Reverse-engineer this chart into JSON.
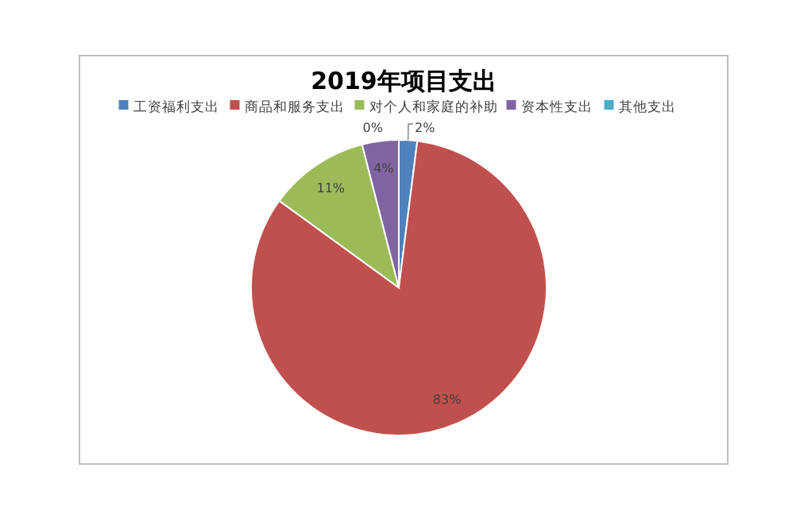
{
  "chart_data": {
    "type": "pie",
    "title": "2019年项目支出",
    "legend": "top",
    "value_labels": [
      "2%",
      "83%",
      "11%",
      "4%",
      "0%"
    ],
    "categories": [
      "工资福利支出",
      "商品和服务支出",
      "对个人和家庭的补助",
      "资本性支出",
      "其他支出"
    ],
    "values": [
      2,
      83,
      11,
      4,
      0
    ],
    "colors": [
      "#4f81bd",
      "#c0504d",
      "#9bbb59",
      "#8064a2",
      "#4bacc6"
    ]
  }
}
